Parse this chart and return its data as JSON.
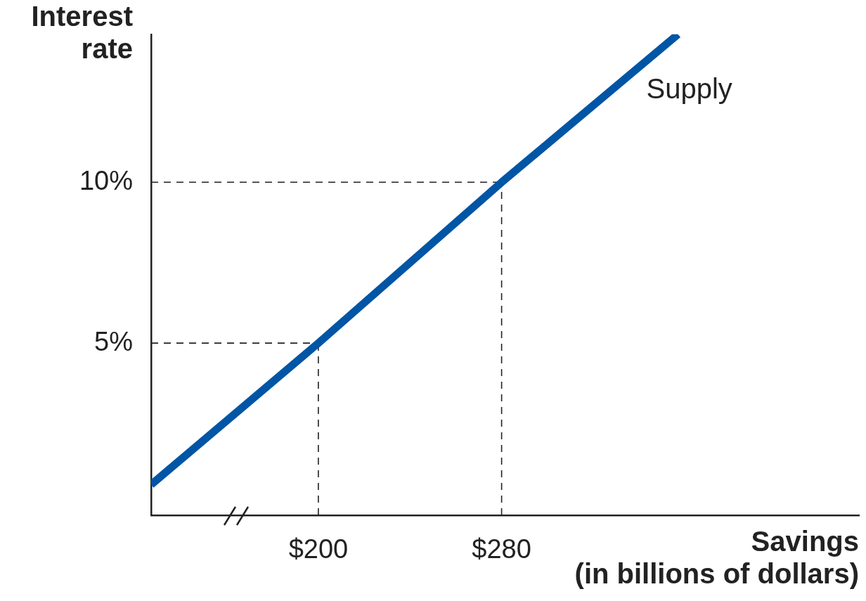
{
  "chart_data": {
    "type": "line",
    "xlabel": "Savings\n(in billions of dollars)",
    "ylabel": "Interest\nrate",
    "x": [
      127,
      200,
      280,
      357
    ],
    "series": [
      {
        "name": "Supply",
        "color": "#0055a5",
        "values": [
          0.6,
          5,
          10,
          14.6
        ]
      }
    ],
    "xlim": [
      127,
      436
    ],
    "ylim": [
      -0.35,
      14.6
    ],
    "xticks": [
      {
        "value": 200,
        "label": "$200"
      },
      {
        "value": 280,
        "label": "$280"
      }
    ],
    "yticks": [
      {
        "value": 5,
        "label": "5%"
      },
      {
        "value": 10,
        "label": "10%"
      }
    ],
    "ref_lines": [
      {
        "axis": "y",
        "value": 10,
        "color": "#222222",
        "line_style": "dashed"
      },
      {
        "axis": "y",
        "value": 5,
        "color": "#222222",
        "line_style": "dashed"
      },
      {
        "axis": "x",
        "value": 280,
        "color": "#222222",
        "line_style": "dashed"
      },
      {
        "axis": "x",
        "value": 200,
        "color": "#222222",
        "line_style": "dashed"
      }
    ],
    "grid": false,
    "legend": false,
    "marker": "none",
    "line_style": "solid"
  }
}
